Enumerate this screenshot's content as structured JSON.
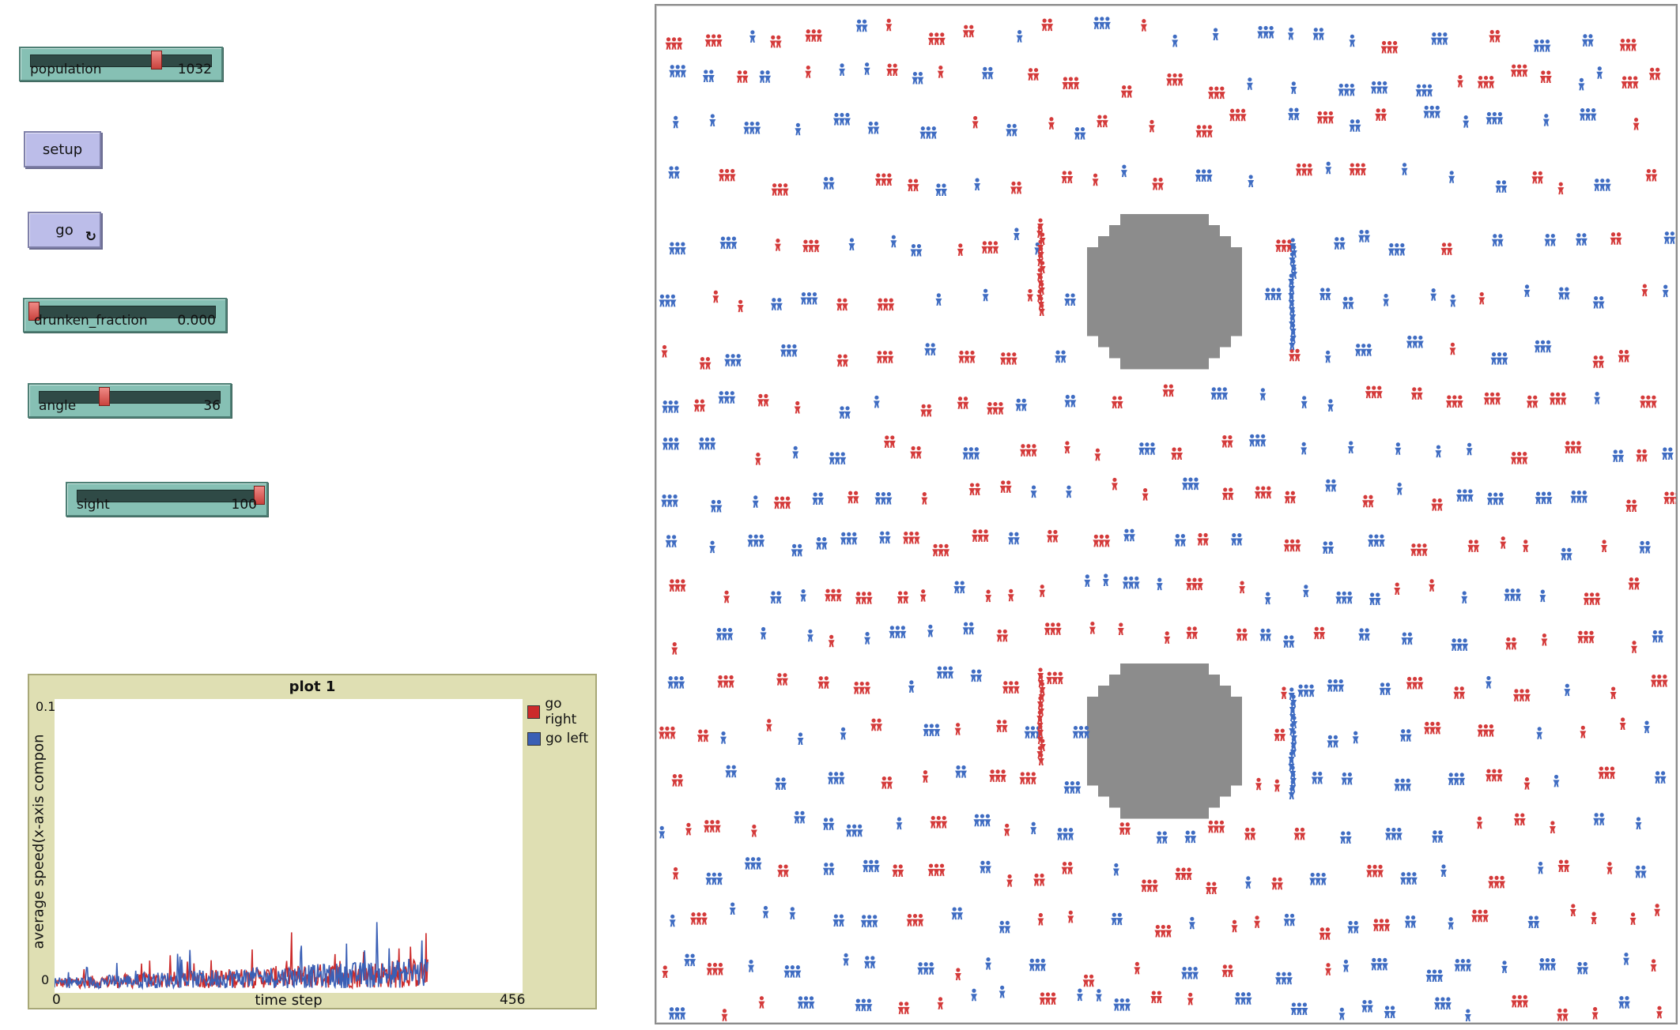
{
  "controls": {
    "population": {
      "label": "population",
      "value": "1032",
      "position": 0.7
    },
    "setup": {
      "label": "setup"
    },
    "go": {
      "label": "go",
      "forever_icon": "forever-icon"
    },
    "drunken_fraction": {
      "label": "drunken_fraction",
      "value": "0.000",
      "position": 0.0
    },
    "angle": {
      "label": "angle",
      "value": "36",
      "position": 0.4
    },
    "sight": {
      "label": "sight",
      "value": "100",
      "position": 1.0
    }
  },
  "plot": {
    "title": "plot 1",
    "ylabel": "average speed(x-axis compon",
    "xlabel": "time step",
    "ymin_label": "0",
    "ymax_label": "0.1",
    "xmin_label": "0",
    "xmax_label": "456",
    "legend": [
      {
        "label": "go right",
        "color": "#cc2b2b"
      },
      {
        "label": "go left",
        "color": "#3a5fb5"
      }
    ]
  },
  "colors": {
    "go_right_agent": "#d43a3a",
    "go_left_agent": "#3f6cc2",
    "obstacle": "#8c8c8c"
  }
}
